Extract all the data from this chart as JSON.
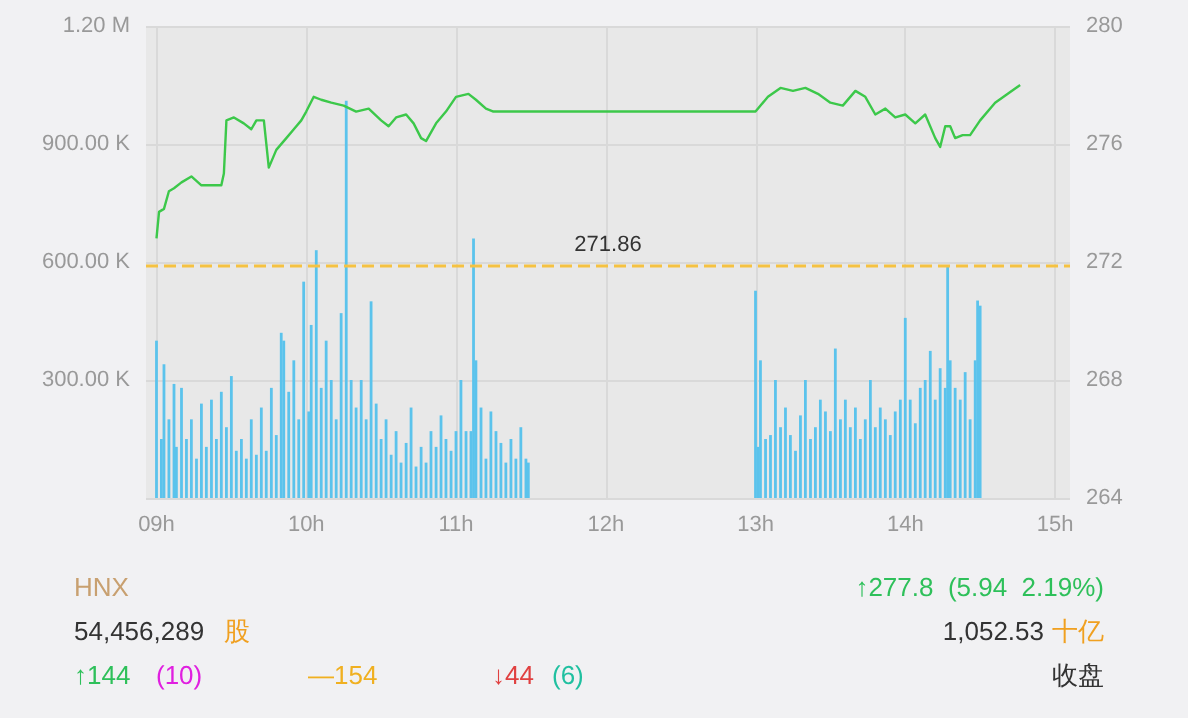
{
  "chart_data": {
    "type": "bar",
    "grid": true,
    "xlim": [
      8.93,
      15.1
    ],
    "xticks": [
      {
        "value": 9,
        "label": "09h"
      },
      {
        "value": 10,
        "label": "10h"
      },
      {
        "value": 11,
        "label": "11h"
      },
      {
        "value": 12,
        "label": "12h"
      },
      {
        "value": 13,
        "label": "13h"
      },
      {
        "value": 14,
        "label": "14h"
      },
      {
        "value": 15,
        "label": "15h"
      }
    ],
    "ylim": [
      0,
      1200000
    ],
    "yticks": [
      {
        "value": 0,
        "label": null
      },
      {
        "value": 300000,
        "label": "300.00 K"
      },
      {
        "value": 600000,
        "label": "600.00 K"
      },
      {
        "value": 900000,
        "label": "900.00 K"
      },
      {
        "value": 1200000,
        "label": "1.20 M"
      }
    ],
    "y2lim": [
      264,
      280
    ],
    "y2ticks": [
      264,
      268,
      272,
      276,
      280
    ],
    "ref_lines": [
      {
        "axis": "y2",
        "value": 271.86,
        "label": "271.86",
        "color": "#f5c242",
        "line_style": "dashed"
      }
    ],
    "series": [
      {
        "color": "#5bc3ec",
        "x": [
          9,
          9.033,
          9.05,
          9.083,
          9.117,
          9.133,
          9.167,
          9.2,
          9.233,
          9.267,
          9.3,
          9.333,
          9.367,
          9.4,
          9.433,
          9.467,
          9.5,
          9.533,
          9.567,
          9.6,
          9.633,
          9.667,
          9.7,
          9.733,
          9.767,
          9.8,
          9.833,
          9.85,
          9.883,
          9.917,
          9.95,
          9.983,
          10.017,
          10.033,
          10.067,
          10.1,
          10.133,
          10.167,
          10.2,
          10.233,
          10.267,
          10.3,
          10.333,
          10.367,
          10.4,
          10.433,
          10.467,
          10.5,
          10.533,
          10.567,
          10.6,
          10.633,
          10.667,
          10.7,
          10.733,
          10.767,
          10.8,
          10.833,
          10.867,
          10.9,
          10.933,
          10.967,
          11,
          11.033,
          11.067,
          11.1,
          11.117,
          11.133,
          11.167,
          11.2,
          11.233,
          11.267,
          11.3,
          11.333,
          11.367,
          11.4,
          11.433,
          11.467,
          11.483,
          13,
          13.017,
          13.033,
          13.067,
          13.1,
          13.133,
          13.167,
          13.2,
          13.233,
          13.267,
          13.3,
          13.333,
          13.367,
          13.4,
          13.433,
          13.467,
          13.5,
          13.533,
          13.567,
          13.6,
          13.633,
          13.667,
          13.7,
          13.733,
          13.767,
          13.8,
          13.833,
          13.867,
          13.9,
          13.933,
          13.967,
          14,
          14.033,
          14.067,
          14.1,
          14.133,
          14.167,
          14.2,
          14.233,
          14.267,
          14.283,
          14.3,
          14.333,
          14.367,
          14.4,
          14.433,
          14.467,
          14.483,
          14.5
        ],
        "values": [
          400000,
          150000,
          340000,
          200000,
          290000,
          130000,
          280000,
          150000,
          200000,
          100000,
          240000,
          130000,
          250000,
          150000,
          270000,
          180000,
          310000,
          120000,
          150000,
          100000,
          200000,
          110000,
          230000,
          120000,
          280000,
          160000,
          420000,
          400000,
          270000,
          350000,
          200000,
          550000,
          220000,
          440000,
          630000,
          280000,
          400000,
          300000,
          200000,
          470000,
          1010000,
          300000,
          230000,
          300000,
          200000,
          500000,
          240000,
          150000,
          200000,
          110000,
          170000,
          90000,
          140000,
          230000,
          80000,
          130000,
          90000,
          170000,
          130000,
          210000,
          150000,
          120000,
          170000,
          300000,
          170000,
          170000,
          660000,
          350000,
          230000,
          100000,
          220000,
          170000,
          140000,
          90000,
          150000,
          100000,
          180000,
          100000,
          90000,
          527000,
          130000,
          350000,
          150000,
          160000,
          300000,
          180000,
          230000,
          160000,
          120000,
          210000,
          300000,
          150000,
          180000,
          250000,
          220000,
          170000,
          380000,
          200000,
          250000,
          180000,
          230000,
          150000,
          200000,
          300000,
          180000,
          230000,
          200000,
          160000,
          220000,
          250000,
          458000,
          250000,
          190000,
          280000,
          300000,
          374000,
          250000,
          330000,
          280000,
          590000,
          350000,
          280000,
          250000,
          320000,
          200000,
          350000,
          502000,
          489000
        ]
      },
      {
        "type": "line",
        "axis": "y2",
        "color": "#3cc84a",
        "x": [
          9,
          9.017,
          9.05,
          9.083,
          9.117,
          9.167,
          9.233,
          9.3,
          9.367,
          9.433,
          9.45,
          9.467,
          9.517,
          9.583,
          9.633,
          9.667,
          9.717,
          9.75,
          9.8,
          9.867,
          9.917,
          9.967,
          10,
          10.05,
          10.1,
          10.167,
          10.25,
          10.333,
          10.417,
          10.5,
          10.55,
          10.6,
          10.667,
          10.717,
          10.767,
          10.8,
          10.867,
          10.933,
          11,
          11.083,
          11.133,
          11.2,
          11.25,
          11.5,
          13,
          13.083,
          13.167,
          13.25,
          13.333,
          13.417,
          13.5,
          13.583,
          13.667,
          13.733,
          13.8,
          13.867,
          13.933,
          14,
          14.067,
          14.133,
          14.2,
          14.233,
          14.267,
          14.3,
          14.333,
          14.383,
          14.433,
          14.5,
          14.6,
          14.767
        ],
        "values": [
          272.8,
          273.7,
          273.8,
          274.4,
          274.5,
          274.7,
          274.9,
          274.6,
          274.6,
          274.6,
          275.0,
          276.8,
          276.9,
          276.7,
          276.5,
          276.8,
          276.8,
          275.2,
          275.8,
          276.2,
          276.5,
          276.8,
          277.1,
          277.6,
          277.5,
          277.4,
          277.3,
          277.1,
          277.2,
          276.8,
          276.6,
          276.9,
          277.0,
          276.7,
          276.2,
          276.1,
          276.7,
          277.1,
          277.6,
          277.7,
          277.5,
          277.2,
          277.1,
          277.1,
          277.1,
          277.6,
          277.9,
          277.8,
          277.9,
          277.7,
          277.4,
          277.3,
          277.8,
          277.6,
          277.0,
          277.2,
          276.9,
          277.0,
          276.7,
          277.0,
          276.2,
          275.9,
          276.6,
          276.6,
          276.2,
          276.3,
          276.3,
          276.8,
          277.4,
          278.0
        ]
      }
    ],
    "annotations": [
      "HNX",
      "↑277.8  (5.94  2.19%)",
      "54,456,289",
      "股",
      "1,052.53",
      "十亿",
      "↑144",
      "(10)",
      "—154",
      "↓44",
      "(6)",
      "收盘"
    ]
  }
}
